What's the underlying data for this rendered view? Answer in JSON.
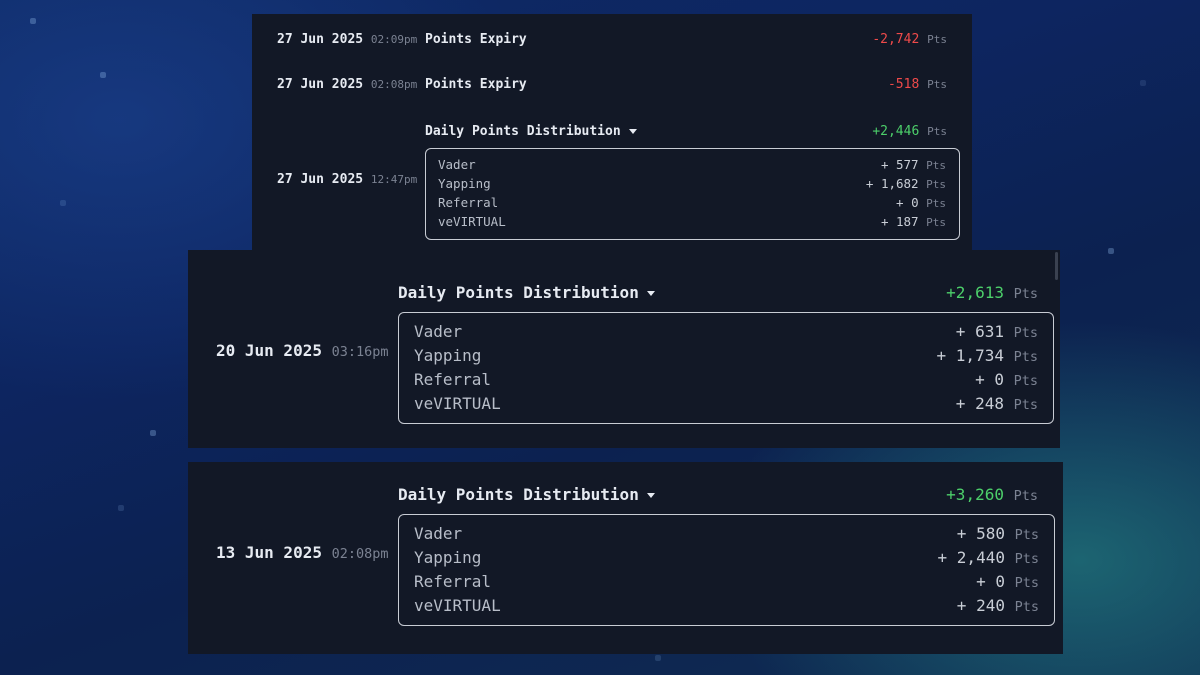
{
  "unit": "Pts",
  "entries": [
    {
      "date": "27 Jun 2025",
      "time": "02:09pm",
      "title": "Points Expiry",
      "amount": "-2,742"
    },
    {
      "date": "27 Jun 2025",
      "time": "02:08pm",
      "title": "Points Expiry",
      "amount": "-518"
    },
    {
      "date": "27 Jun 2025",
      "time": "12:47pm",
      "title": "Daily Points Distribution",
      "amount": "+2,446",
      "breakdown": [
        {
          "name": "Vader",
          "value": "+ 577"
        },
        {
          "name": "Yapping",
          "value": "+ 1,682"
        },
        {
          "name": "Referral",
          "value": "+ 0"
        },
        {
          "name": "veVIRTUAL",
          "value": "+ 187"
        }
      ]
    },
    {
      "date": "20 Jun 2025",
      "time": "03:16pm",
      "title": "Daily Points Distribution",
      "amount": "+2,613",
      "breakdown": [
        {
          "name": "Vader",
          "value": "+ 631"
        },
        {
          "name": "Yapping",
          "value": "+ 1,734"
        },
        {
          "name": "Referral",
          "value": "+ 0"
        },
        {
          "name": "veVIRTUAL",
          "value": "+ 248"
        }
      ]
    },
    {
      "date": "13 Jun 2025",
      "time": "02:08pm",
      "title": "Daily Points Distribution",
      "amount": "+3,260",
      "breakdown": [
        {
          "name": "Vader",
          "value": "+ 580"
        },
        {
          "name": "Yapping",
          "value": "+ 2,440"
        },
        {
          "name": "Referral",
          "value": "+ 0"
        },
        {
          "name": "veVIRTUAL",
          "value": "+ 240"
        }
      ]
    }
  ],
  "colors": {
    "negative": "#ef4a4a",
    "positive": "#4ccf6a",
    "panel": "#121826"
  }
}
